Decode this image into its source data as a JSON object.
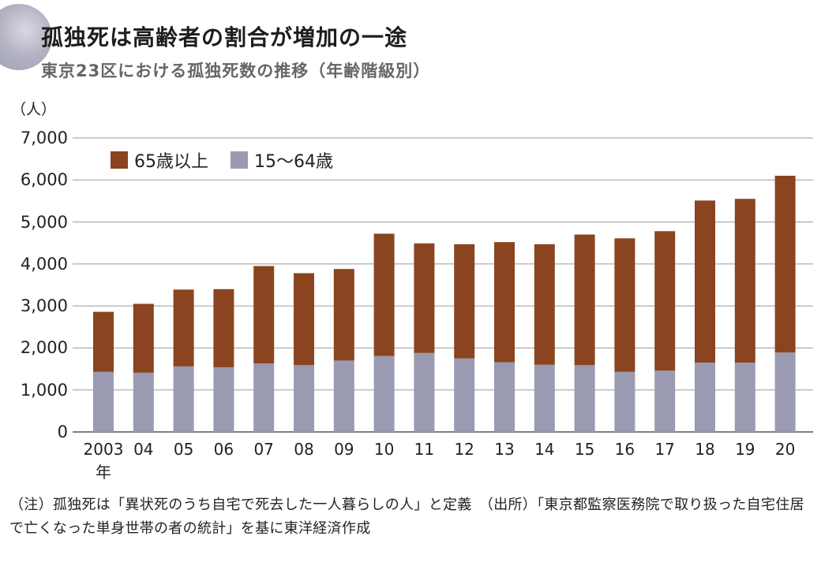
{
  "chart_data": {
    "type": "bar",
    "stacked": true,
    "title": "孤独死は高齢者の割合が増加の一途",
    "subtitle": "東京23区における孤独死数の推移（年齢階級別）",
    "ylabel": "（人）",
    "ylim": [
      0,
      7000
    ],
    "yticks": [
      "0",
      "1,000",
      "2,000",
      "3,000",
      "4,000",
      "5,000",
      "6,000",
      "7,000"
    ],
    "grid": true,
    "legend_position": "top-left",
    "categories": [
      "2003",
      "04",
      "05",
      "06",
      "07",
      "08",
      "09",
      "10",
      "11",
      "12",
      "13",
      "14",
      "15",
      "16",
      "17",
      "18",
      "19",
      "20"
    ],
    "first_category_suffix": "年",
    "series": [
      {
        "name": "15～64歳",
        "color": "#9a9ab2",
        "values": [
          1430,
          1410,
          1560,
          1540,
          1630,
          1590,
          1700,
          1810,
          1880,
          1750,
          1660,
          1600,
          1590,
          1430,
          1460,
          1650,
          1650,
          1890
        ]
      },
      {
        "name": "65歳以上",
        "color": "#8a4520",
        "values": [
          1430,
          1640,
          1830,
          1860,
          2320,
          2190,
          2180,
          2910,
          2610,
          2720,
          2860,
          2870,
          3110,
          3180,
          3320,
          3860,
          3900,
          4210
        ]
      }
    ],
    "legend_order": [
      "65歳以上",
      "15～64歳"
    ],
    "gridline_color": "#9a9a9a"
  },
  "note": "（注）孤独死は「異状死のうち自宅で死去した一人暮らしの人」と定義　（出所）「東京都監察医務院で取り扱った自宅住居で亡くなった単身世帯の者の統計」を基に東洋経済作成"
}
